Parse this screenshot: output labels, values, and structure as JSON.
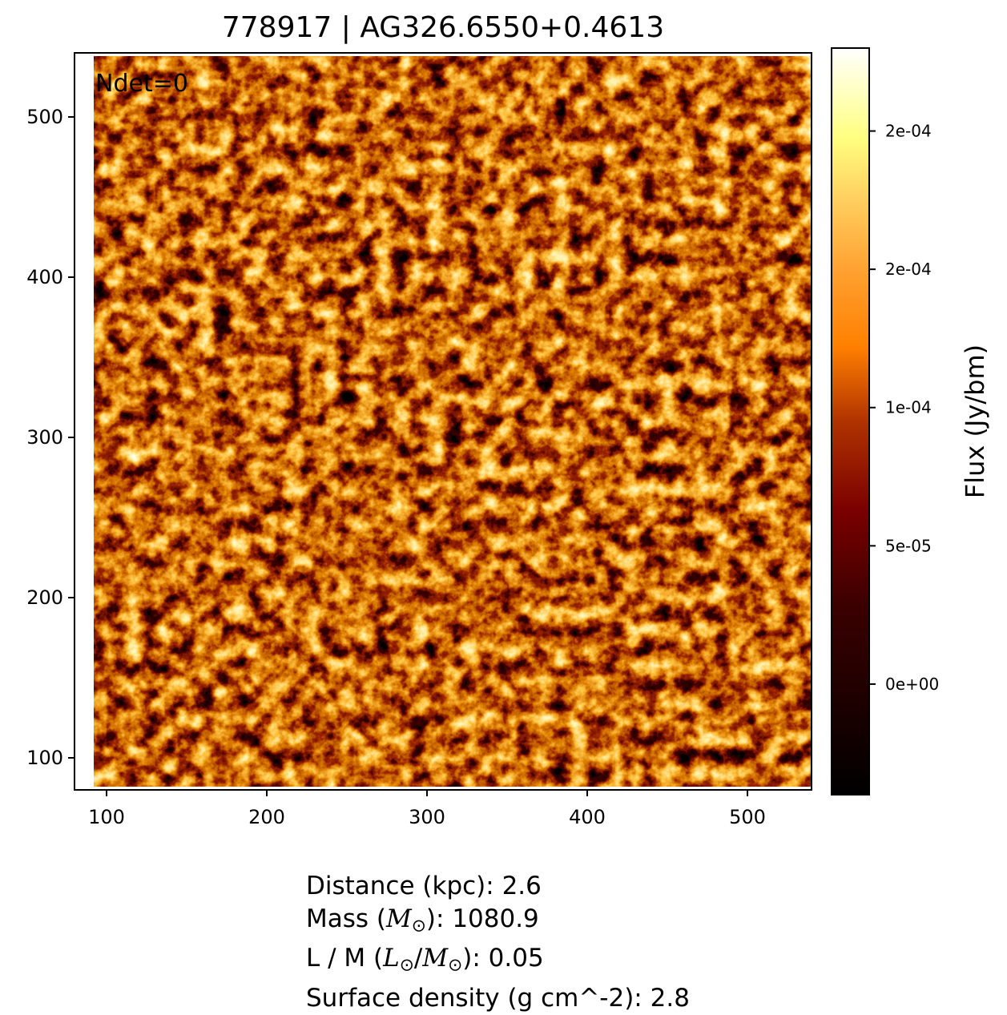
{
  "title": "778917 | AG326.6550+0.4613",
  "annotation": "Ndet=0",
  "chart_data": {
    "type": "heatmap",
    "title": "778917 | AG326.6550+0.4613",
    "xlim": [
      80,
      540
    ],
    "ylim": [
      80,
      540
    ],
    "xticks": [
      100,
      200,
      300,
      400,
      500
    ],
    "yticks": [
      100,
      200,
      300,
      400,
      500
    ],
    "circle_center": [
      320,
      310
    ],
    "circle_radius": 228,
    "colormap": "afmhot",
    "colorbar": {
      "label": "Flux (Jy/bm)",
      "range": [
        -4e-05,
        0.00023
      ],
      "ticks": [
        {
          "value": 0.0,
          "label": "0e+00"
        },
        {
          "value": 5e-05,
          "label": "5e-05"
        },
        {
          "value": 0.0001,
          "label": "1e-04"
        },
        {
          "value": 0.00015,
          "label": "2e-04"
        },
        {
          "value": 0.0002,
          "label": "2e-04"
        }
      ]
    }
  },
  "info": {
    "distance": "Distance (kpc): 2.6",
    "mass_prefix": "Mass (",
    "mass_symbol": "M",
    "mass_suffix": "): 1080.9",
    "lm_prefix": "L / M (",
    "lm_l": "L",
    "lm_m": "M",
    "lm_suffix": "): 0.05",
    "surface": "Surface density (g cm^-2): 2.8",
    "sun": "⊙"
  }
}
